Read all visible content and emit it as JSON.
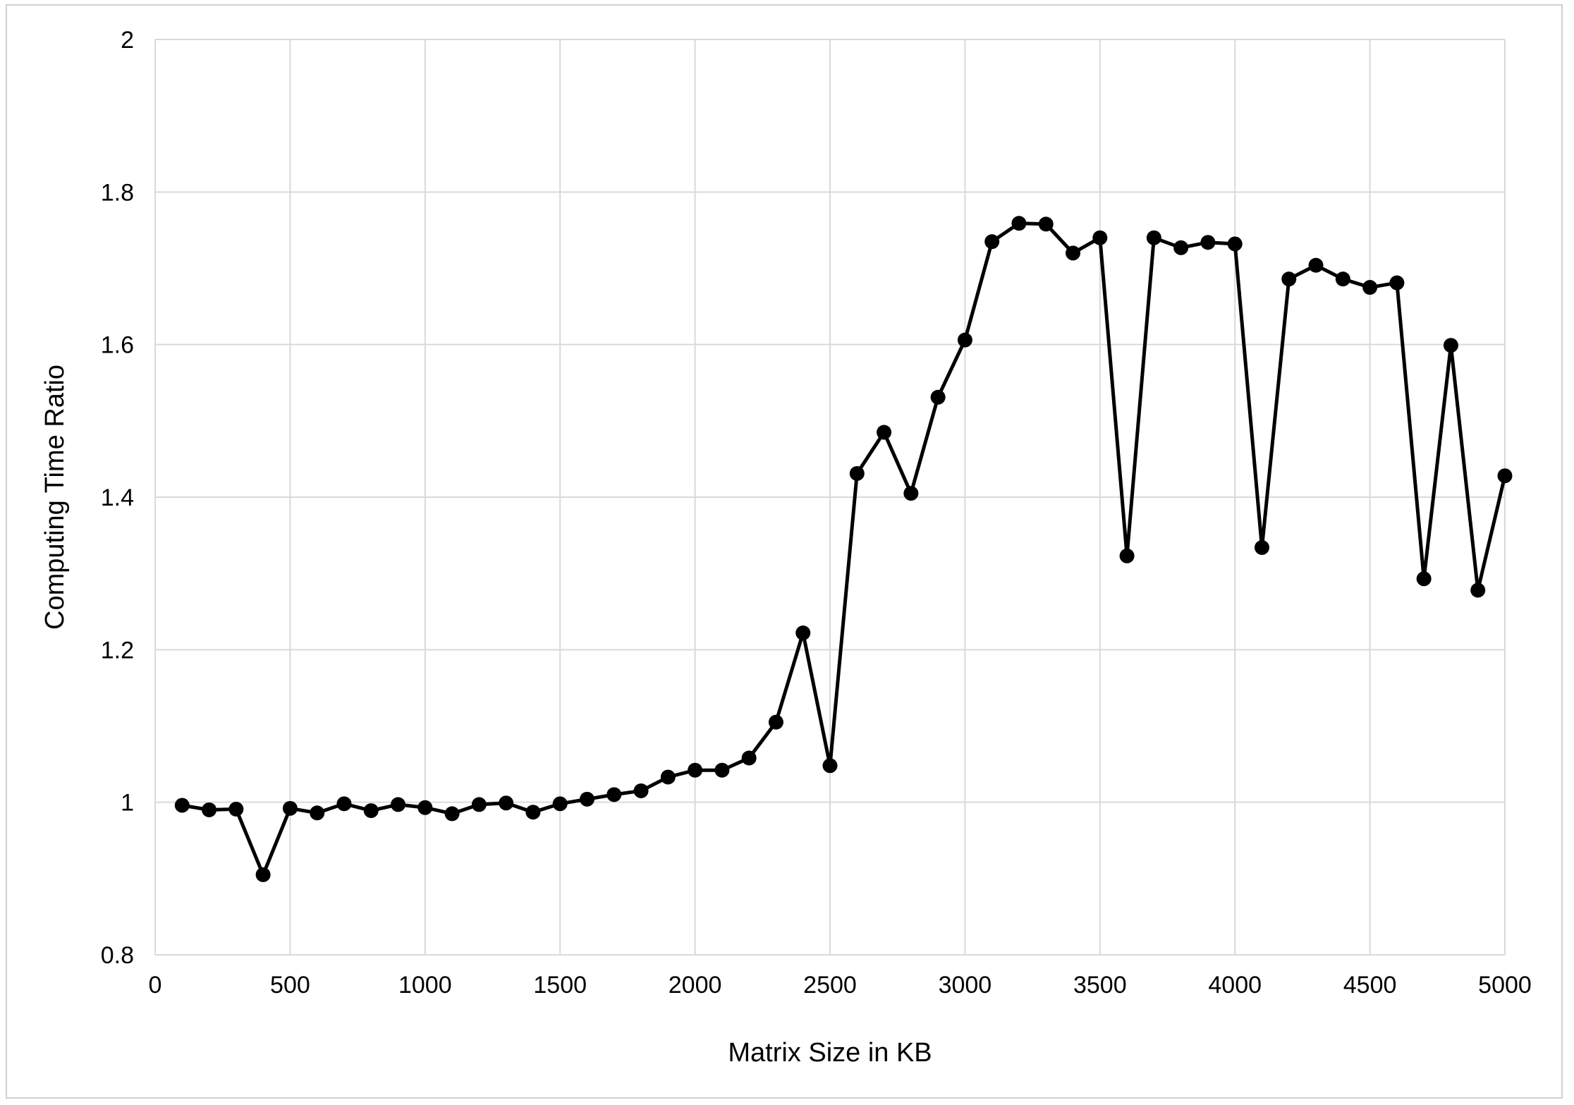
{
  "chart_data": {
    "type": "line",
    "xlabel": "Matrix Size in KB",
    "ylabel": "Computing Time Ratio",
    "xlim": [
      0,
      5000
    ],
    "ylim": [
      0.8,
      2.0
    ],
    "xticks": [
      "0",
      "500",
      "1000",
      "1500",
      "2000",
      "2500",
      "3000",
      "3500",
      "4000",
      "4500",
      "5000"
    ],
    "yticks": [
      "0.8",
      "1",
      "1.2",
      "1.4",
      "1.6",
      "1.8",
      "2"
    ],
    "grid": true,
    "legend": "none",
    "series": [
      {
        "color": "#000000",
        "marker": "circle",
        "x": [
          100,
          200,
          300,
          400,
          500,
          600,
          700,
          800,
          900,
          1000,
          1100,
          1200,
          1300,
          1400,
          1500,
          1600,
          1700,
          1800,
          1900,
          2000,
          2100,
          2200,
          2300,
          2400,
          2500,
          2600,
          2700,
          2800,
          2900,
          3000,
          3100,
          3200,
          3300,
          3400,
          3500,
          3600,
          3700,
          3800,
          3900,
          4000,
          4100,
          4200,
          4300,
          4400,
          4500,
          4600,
          4700,
          4800,
          4900,
          5000
        ],
        "values": [
          0.996,
          0.99,
          0.991,
          0.905,
          0.992,
          0.986,
          0.998,
          0.989,
          0.997,
          0.993,
          0.985,
          0.997,
          0.999,
          0.987,
          0.998,
          1.004,
          1.01,
          1.015,
          1.033,
          1.042,
          1.042,
          1.058,
          1.105,
          1.222,
          1.048,
          1.431,
          1.485,
          1.405,
          1.531,
          1.606,
          1.735,
          1.759,
          1.758,
          1.72,
          1.74,
          1.323,
          1.74,
          1.727,
          1.734,
          1.732,
          1.334,
          1.686,
          1.704,
          1.686,
          1.675,
          1.681,
          1.293,
          1.599,
          1.278,
          1.428
        ]
      }
    ]
  }
}
